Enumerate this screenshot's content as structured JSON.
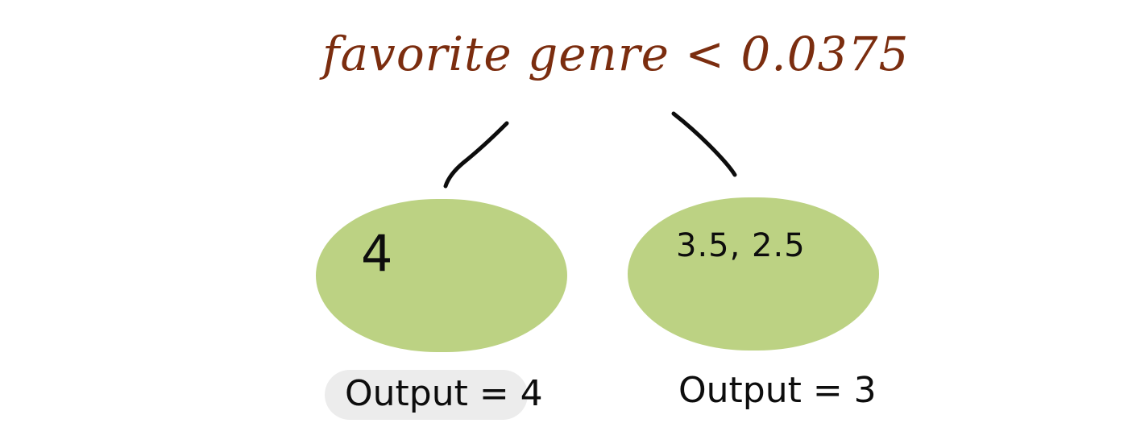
{
  "diagram": {
    "root": {
      "split_label": "favorite genre < 0.0375"
    },
    "leaves": [
      {
        "values": "4",
        "output": "Output = 4",
        "highlighted": true
      },
      {
        "values": "3.5, 2.5",
        "output": "Output = 3",
        "highlighted": false
      }
    ],
    "colors": {
      "split_text": "#7b2d0f",
      "leaf_fill": "#bcd283",
      "edge": "#0d0d0d",
      "output_highlight": "#ececec",
      "text": "#0d0d0d"
    }
  }
}
